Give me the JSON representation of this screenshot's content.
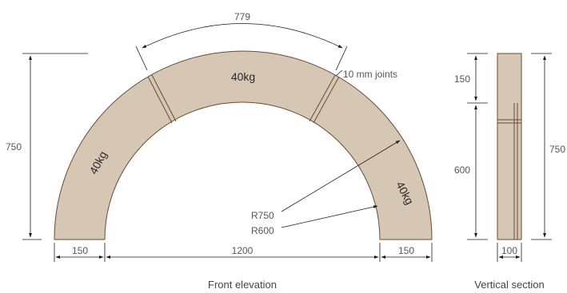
{
  "front_elevation": {
    "caption": "Front elevation",
    "blocks": {
      "top_weight": "40kg",
      "left_weight": "40kg",
      "right_weight": "40kg"
    },
    "dimensions": {
      "arc_length": "779",
      "height": "750",
      "left_width": "150",
      "span": "1200",
      "right_width": "150"
    },
    "annotations": {
      "joints": "10 mm joints",
      "outer_radius": "R750",
      "inner_radius": "R600"
    },
    "colors": {
      "stone": "#d6c7b5",
      "stone_edge": "#6b4a33"
    }
  },
  "vertical_section": {
    "caption": "Vertical section",
    "dimensions": {
      "top": "150",
      "lower": "600",
      "total": "750",
      "width": "100"
    }
  }
}
